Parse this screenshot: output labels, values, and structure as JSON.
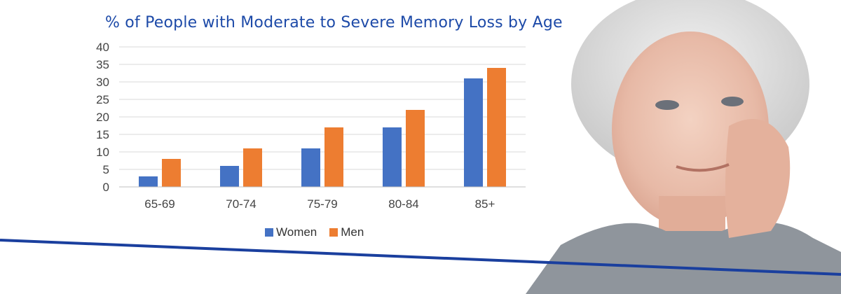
{
  "chart_data": {
    "type": "bar",
    "title": "% of People with Moderate to Severe Memory Loss by Age",
    "categories": [
      "65-69",
      "70-74",
      "75-79",
      "80-84",
      "85+"
    ],
    "series": [
      {
        "name": "Women",
        "values": [
          3,
          6,
          11,
          17,
          31
        ],
        "color": "#4472c4"
      },
      {
        "name": "Men",
        "values": [
          8,
          11,
          17,
          22,
          34
        ],
        "color": "#ed7d31"
      }
    ],
    "ylim": [
      0,
      40
    ],
    "yticks": [
      0,
      5,
      10,
      15,
      20,
      25,
      30,
      35,
      40
    ],
    "grid": true,
    "legend_position": "bottom",
    "xlabel": "",
    "ylabel": ""
  },
  "accent_color": "#1a3f9e",
  "photo_icon": "portrait-photo-icon"
}
